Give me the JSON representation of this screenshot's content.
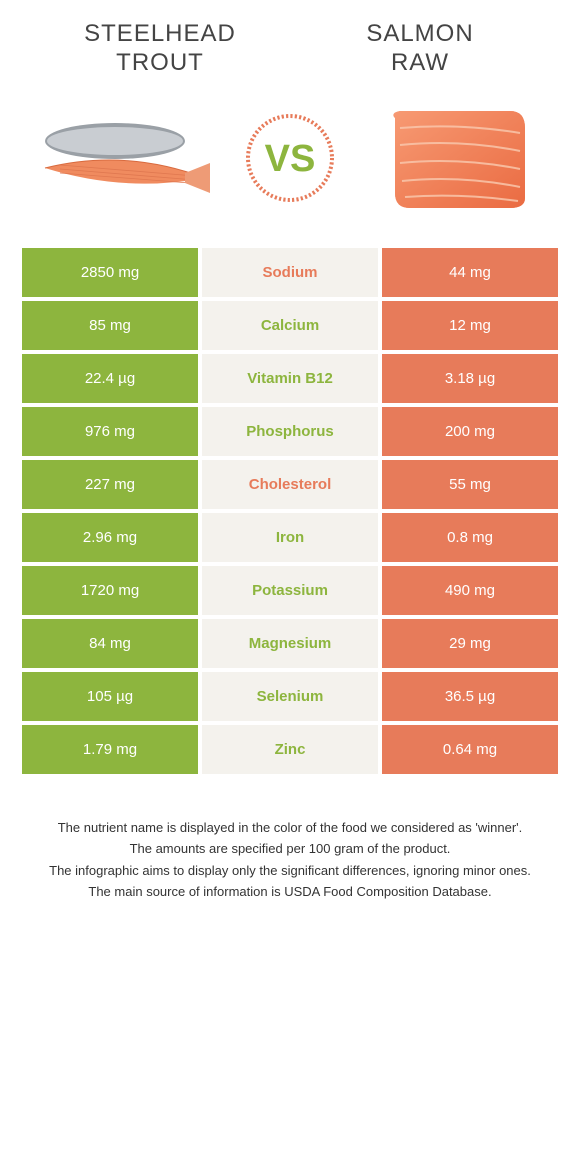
{
  "left_food": {
    "title": "Steelhead\ntrout"
  },
  "right_food": {
    "title": "Salmon\nraw"
  },
  "vs_label": "VS",
  "colors": {
    "left_bg": "#8db53e",
    "right_bg": "#e77b5a",
    "mid_bg": "#f4f2ed",
    "left_text": "#ffffff",
    "right_text": "#ffffff",
    "mid_text_green": "#8db53e",
    "mid_text_orange": "#e77b5a",
    "vs_text": "#8db53e",
    "vs_ring": "#e77b5a"
  },
  "rows": [
    {
      "nutrient": "Sodium",
      "left": "2850 mg",
      "right": "44 mg",
      "winner": "right"
    },
    {
      "nutrient": "Calcium",
      "left": "85 mg",
      "right": "12 mg",
      "winner": "left"
    },
    {
      "nutrient": "Vitamin B12",
      "left": "22.4 µg",
      "right": "3.18 µg",
      "winner": "left"
    },
    {
      "nutrient": "Phosphorus",
      "left": "976 mg",
      "right": "200 mg",
      "winner": "left"
    },
    {
      "nutrient": "Cholesterol",
      "left": "227 mg",
      "right": "55 mg",
      "winner": "right"
    },
    {
      "nutrient": "Iron",
      "left": "2.96 mg",
      "right": "0.8 mg",
      "winner": "left"
    },
    {
      "nutrient": "Potassium",
      "left": "1720 mg",
      "right": "490 mg",
      "winner": "left"
    },
    {
      "nutrient": "Magnesium",
      "left": "84 mg",
      "right": "29 mg",
      "winner": "left"
    },
    {
      "nutrient": "Selenium",
      "left": "105 µg",
      "right": "36.5 µg",
      "winner": "left"
    },
    {
      "nutrient": "Zinc",
      "left": "1.79 mg",
      "right": "0.64 mg",
      "winner": "left"
    }
  ],
  "footnotes": [
    "The nutrient name is displayed in the color of the food we considered as 'winner'.",
    "The amounts are specified per 100 gram of the product.",
    "The infographic aims to display only the significant differences, ignoring minor ones.",
    "The main source of information is USDA Food Composition Database."
  ]
}
